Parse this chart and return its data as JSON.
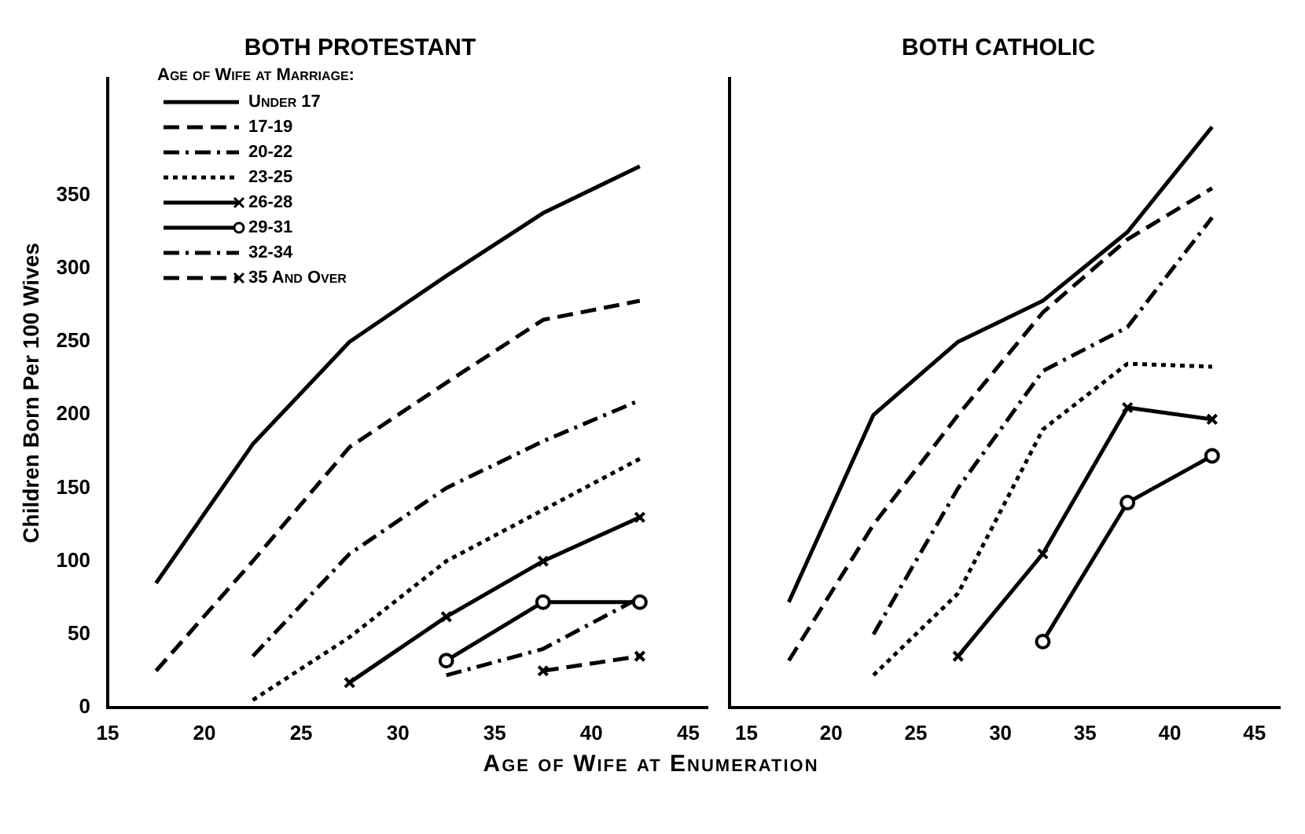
{
  "chart_data": [
    {
      "type": "line",
      "title": "BOTH PROTESTANT",
      "ylabel": "Children Born Per 100 Wives",
      "xlabel": "Age of Wife at Enumeration",
      "legend_title": "Age of Wife at Marriage:",
      "legend": "top left",
      "grid": false,
      "xlim": [
        15,
        46
      ],
      "xticks": [
        15,
        20,
        25,
        30,
        35,
        40,
        45
      ],
      "ylim": [
        0,
        430
      ],
      "yticks": [
        0,
        50,
        100,
        150,
        200,
        250,
        300,
        350
      ],
      "series": [
        {
          "name": "Under 17",
          "color": "#000000",
          "line_style": "solid",
          "marker": "none",
          "x": [
            17.5,
            22.5,
            27.5,
            32.5,
            37.5,
            42.5
          ],
          "values": [
            85,
            180,
            250,
            295,
            338,
            370
          ]
        },
        {
          "name": "17-19",
          "color": "#000000",
          "line_style": "dashed",
          "marker": "none",
          "x": [
            17.5,
            22.5,
            27.5,
            32.5,
            37.5,
            42.5
          ],
          "values": [
            25,
            100,
            178,
            222,
            265,
            278
          ]
        },
        {
          "name": "20-22",
          "color": "#000000",
          "line_style": "dashdot",
          "marker": "none",
          "x": [
            22.5,
            27.5,
            32.5,
            37.5,
            42.5
          ],
          "values": [
            35,
            105,
            150,
            182,
            210
          ]
        },
        {
          "name": "23-25",
          "color": "#000000",
          "line_style": "dotted",
          "marker": "none",
          "x": [
            22.5,
            27.5,
            32.5,
            37.5,
            42.5
          ],
          "values": [
            5,
            48,
            100,
            135,
            170
          ]
        },
        {
          "name": "26-28",
          "color": "#000000",
          "line_style": "solid",
          "marker": "cross",
          "x": [
            27.5,
            32.5,
            37.5,
            42.5
          ],
          "values": [
            17,
            62,
            100,
            130
          ]
        },
        {
          "name": "29-31",
          "color": "#000000",
          "line_style": "solid",
          "marker": "circle",
          "x": [
            32.5,
            37.5,
            42.5
          ],
          "values": [
            32,
            72,
            72
          ]
        },
        {
          "name": "32-34",
          "color": "#000000",
          "line_style": "dashdot",
          "marker": "none",
          "x": [
            32.5,
            37.5,
            42.5
          ],
          "values": [
            22,
            40,
            75
          ]
        },
        {
          "name": "35 And Over",
          "color": "#000000",
          "line_style": "dashed",
          "marker": "cross",
          "x": [
            37.5,
            42.5
          ],
          "values": [
            25,
            35
          ]
        }
      ]
    },
    {
      "type": "line",
      "title": "BOTH CATHOLIC",
      "tick_labels": "x",
      "grid": false,
      "xlim": [
        14,
        46.5
      ],
      "xticks": [
        15,
        20,
        25,
        30,
        35,
        40,
        45
      ],
      "ylim": [
        0,
        430
      ],
      "yticks": [
        0,
        50,
        100,
        150,
        200,
        250,
        300,
        350
      ],
      "series": [
        {
          "color": "#000000",
          "line_style": "solid",
          "marker": "none",
          "x": [
            17.5,
            22.5,
            27.5,
            32.5,
            37.5,
            42.5
          ],
          "values": [
            72,
            200,
            250,
            278,
            325,
            397
          ]
        },
        {
          "color": "#000000",
          "line_style": "dashed",
          "marker": "none",
          "x": [
            17.5,
            22.5,
            27.5,
            32.5,
            37.5,
            42.5
          ],
          "values": [
            32,
            125,
            200,
            270,
            320,
            355
          ]
        },
        {
          "color": "#000000",
          "line_style": "dashdot",
          "marker": "none",
          "x": [
            22.5,
            27.5,
            32.5,
            37.5,
            42.5
          ],
          "values": [
            50,
            150,
            230,
            260,
            335
          ]
        },
        {
          "color": "#000000",
          "line_style": "dotted",
          "marker": "none",
          "x": [
            22.5,
            27.5,
            32.5,
            37.5,
            42.5
          ],
          "values": [
            22,
            78,
            190,
            235,
            233
          ]
        },
        {
          "color": "#000000",
          "line_style": "solid",
          "marker": "cross",
          "x": [
            27.5,
            32.5,
            37.5,
            42.5
          ],
          "values": [
            35,
            105,
            205,
            197
          ]
        },
        {
          "color": "#000000",
          "line_style": "solid",
          "marker": "circle",
          "x": [
            32.5,
            37.5,
            42.5
          ],
          "values": [
            45,
            140,
            172
          ]
        }
      ]
    }
  ]
}
